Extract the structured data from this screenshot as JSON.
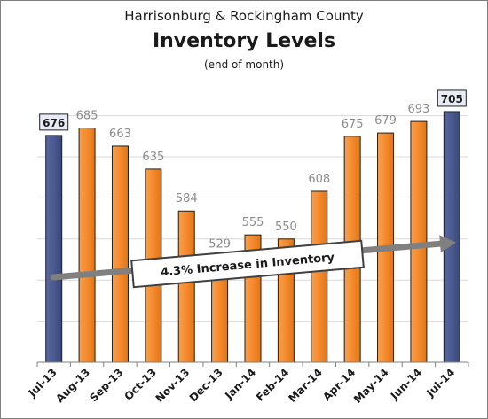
{
  "chart_data": {
    "type": "bar",
    "title_top": "Harrisonburg & Rockingham County",
    "title": "Inventory Levels",
    "subtitle": "(end of month)",
    "categories": [
      "Jul-13",
      "Aug-13",
      "Sep-13",
      "Oct-13",
      "Nov-13",
      "Dec-13",
      "Jan-14",
      "Feb-14",
      "Mar-14",
      "Apr-14",
      "May-14",
      "Jun-14",
      "Jul-14"
    ],
    "values": [
      676,
      685,
      663,
      635,
      584,
      529,
      555,
      550,
      608,
      675,
      679,
      693,
      705
    ],
    "highlighted": [
      true,
      false,
      false,
      false,
      false,
      false,
      false,
      false,
      false,
      false,
      false,
      false,
      true
    ],
    "ylim": [
      400,
      720
    ],
    "grid": true,
    "annotation": "4.3% Increase in Inventory",
    "colors": {
      "bar": "#f58a2d",
      "bar_highlight": "#4a5a8f",
      "label": "#8c8c8c",
      "label_highlight": "#1a1a1a",
      "grid": "#d9d9d9",
      "arrow": "#808080"
    }
  }
}
